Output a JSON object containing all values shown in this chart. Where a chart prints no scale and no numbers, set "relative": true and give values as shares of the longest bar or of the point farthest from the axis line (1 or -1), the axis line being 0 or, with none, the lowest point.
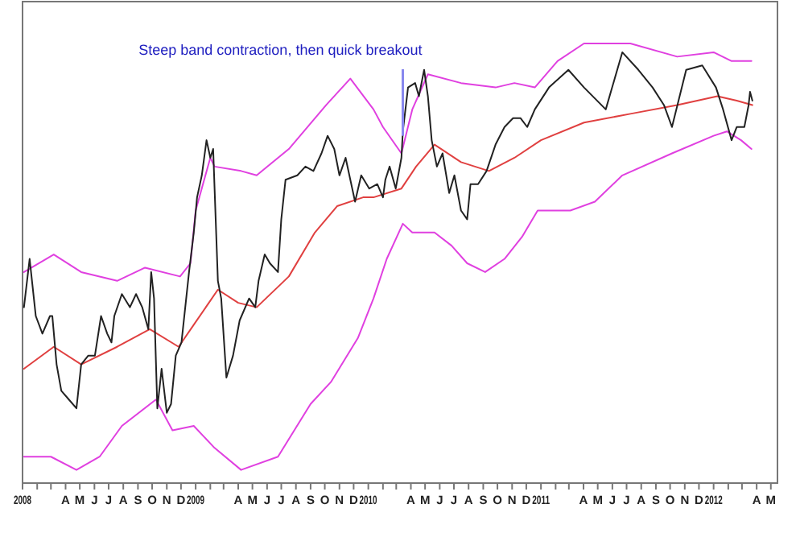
{
  "chart_data": {
    "type": "line",
    "relative": true,
    "grid": false,
    "marker": "none",
    "line_style": "solid",
    "xlim": [
      "2008-01-01",
      "2012-05-15"
    ],
    "xticks": [
      {
        "value": "2008-01-01",
        "label": "2008"
      },
      {
        "value": "2008-02-01",
        "label": null
      },
      {
        "value": "2008-03-01",
        "label": null
      },
      {
        "value": "2008-04-01",
        "label": "A"
      },
      {
        "value": "2008-05-01",
        "label": "M"
      },
      {
        "value": "2008-06-01",
        "label": "J"
      },
      {
        "value": "2008-07-01",
        "label": "J"
      },
      {
        "value": "2008-08-01",
        "label": "A"
      },
      {
        "value": "2008-09-01",
        "label": "S"
      },
      {
        "value": "2008-10-01",
        "label": "O"
      },
      {
        "value": "2008-11-01",
        "label": "N"
      },
      {
        "value": "2008-12-01",
        "label": "D"
      },
      {
        "value": "2009-01-01",
        "label": "2009"
      },
      {
        "value": "2009-02-01",
        "label": null
      },
      {
        "value": "2009-03-01",
        "label": null
      },
      {
        "value": "2009-04-01",
        "label": "A"
      },
      {
        "value": "2009-05-01",
        "label": "M"
      },
      {
        "value": "2009-06-01",
        "label": "J"
      },
      {
        "value": "2009-07-01",
        "label": "J"
      },
      {
        "value": "2009-08-01",
        "label": "A"
      },
      {
        "value": "2009-09-01",
        "label": "S"
      },
      {
        "value": "2009-10-01",
        "label": "O"
      },
      {
        "value": "2009-11-01",
        "label": "N"
      },
      {
        "value": "2009-12-01",
        "label": "D"
      },
      {
        "value": "2010-01-01",
        "label": "2010"
      },
      {
        "value": "2010-02-01",
        "label": null
      },
      {
        "value": "2010-03-01",
        "label": null
      },
      {
        "value": "2010-04-01",
        "label": "A"
      },
      {
        "value": "2010-05-01",
        "label": "M"
      },
      {
        "value": "2010-06-01",
        "label": "J"
      },
      {
        "value": "2010-07-01",
        "label": "J"
      },
      {
        "value": "2010-08-01",
        "label": "A"
      },
      {
        "value": "2010-09-01",
        "label": "S"
      },
      {
        "value": "2010-10-01",
        "label": "O"
      },
      {
        "value": "2010-11-01",
        "label": "N"
      },
      {
        "value": "2010-12-01",
        "label": "D"
      },
      {
        "value": "2011-01-01",
        "label": "2011"
      },
      {
        "value": "2011-02-01",
        "label": null
      },
      {
        "value": "2011-03-01",
        "label": null
      },
      {
        "value": "2011-04-01",
        "label": "A"
      },
      {
        "value": "2011-05-01",
        "label": "M"
      },
      {
        "value": "2011-06-01",
        "label": "J"
      },
      {
        "value": "2011-07-01",
        "label": "J"
      },
      {
        "value": "2011-08-01",
        "label": "A"
      },
      {
        "value": "2011-09-01",
        "label": "S"
      },
      {
        "value": "2011-10-01",
        "label": "O"
      },
      {
        "value": "2011-11-01",
        "label": "N"
      },
      {
        "value": "2011-12-01",
        "label": "D"
      },
      {
        "value": "2012-01-01",
        "label": "2012"
      },
      {
        "value": "2012-02-01",
        "label": null
      },
      {
        "value": "2012-03-01",
        "label": null
      },
      {
        "value": "2012-04-01",
        "label": "A"
      },
      {
        "value": "2012-05-01",
        "label": "M"
      }
    ],
    "annotations": [
      {
        "text": "Steep band contraction, then quick breakout",
        "x": "2010-03-15",
        "y": 0.79
      }
    ],
    "series": [
      {
        "color": "#e040e0",
        "x": [
          "2008-01-04",
          "2008-03-07",
          "2008-05-04",
          "2008-07-19",
          "2008-09-16",
          "2008-11-29",
          "2008-12-21",
          "2009-01-01",
          "2009-02-01",
          "2009-02-10",
          "2009-04-07",
          "2009-05-10",
          "2009-07-17",
          "2009-10-04",
          "2009-11-24",
          "2010-01-12",
          "2010-02-01",
          "2010-03-12",
          "2010-04-04",
          "2010-05-07",
          "2010-07-16",
          "2010-09-27",
          "2010-11-06",
          "2010-12-19",
          "2011-02-05",
          "2011-04-02",
          "2011-07-09",
          "2011-10-16",
          "2012-01-01",
          "2012-02-08",
          "2012-03-21"
        ],
        "values": [
          0.48,
          0.52,
          0.48,
          0.46,
          0.49,
          0.47,
          0.5,
          0.62,
          0.74,
          0.72,
          0.71,
          0.7,
          0.76,
          0.86,
          0.92,
          0.85,
          0.81,
          0.75,
          0.85,
          0.93,
          0.91,
          0.9,
          0.91,
          0.9,
          0.96,
          1.0,
          1.0,
          0.97,
          0.98,
          0.96,
          0.96
        ]
      },
      {
        "color": "#e04040",
        "x": [
          "2008-01-04",
          "2008-03-07",
          "2008-05-04",
          "2008-07-19",
          "2008-09-26",
          "2008-11-26",
          "2008-12-28",
          "2009-02-17",
          "2009-04-01",
          "2009-05-10",
          "2009-07-17",
          "2009-09-10",
          "2009-10-27",
          "2009-12-21",
          "2010-01-12",
          "2010-03-12",
          "2010-04-12",
          "2010-05-21",
          "2010-07-16",
          "2010-09-13",
          "2010-11-06",
          "2011-01-01",
          "2011-04-02",
          "2011-07-09",
          "2011-10-16",
          "2012-01-09",
          "2012-02-19",
          "2012-03-23"
        ],
        "values": [
          0.26,
          0.31,
          0.27,
          0.31,
          0.35,
          0.31,
          0.36,
          0.44,
          0.41,
          0.4,
          0.47,
          0.57,
          0.63,
          0.65,
          0.65,
          0.67,
          0.72,
          0.77,
          0.73,
          0.71,
          0.74,
          0.78,
          0.82,
          0.84,
          0.86,
          0.88,
          0.87,
          0.86
        ]
      },
      {
        "color": "#e040e0",
        "x": [
          "2008-01-04",
          "2008-03-01",
          "2008-04-24",
          "2008-06-12",
          "2008-07-29",
          "2008-10-09",
          "2008-11-13",
          "2008-12-28",
          "2009-02-10",
          "2009-04-07",
          "2009-06-24",
          "2009-09-01",
          "2009-10-14",
          "2009-12-10",
          "2010-01-12",
          "2010-02-09",
          "2010-03-15",
          "2010-04-04",
          "2010-05-21",
          "2010-06-26",
          "2010-07-29",
          "2010-09-05",
          "2010-10-16",
          "2010-11-22",
          "2010-12-25",
          "2011-03-04",
          "2011-04-25",
          "2011-06-22",
          "2011-10-05",
          "2012-01-01",
          "2012-01-29",
          "2012-02-28",
          "2012-03-21"
        ],
        "values": [
          0.06,
          0.06,
          0.03,
          0.06,
          0.13,
          0.19,
          0.12,
          0.13,
          0.08,
          0.03,
          0.06,
          0.18,
          0.23,
          0.33,
          0.42,
          0.51,
          0.59,
          0.57,
          0.57,
          0.54,
          0.5,
          0.48,
          0.51,
          0.56,
          0.62,
          0.62,
          0.64,
          0.7,
          0.75,
          0.79,
          0.8,
          0.78,
          0.76
        ]
      },
      {
        "color": "#222222",
        "x": [
          "2008-01-04",
          "2008-01-16",
          "2008-01-29",
          "2008-02-12",
          "2008-02-28",
          "2008-03-04",
          "2008-03-13",
          "2008-03-23",
          "2008-04-08",
          "2008-04-24",
          "2008-05-04",
          "2008-05-19",
          "2008-06-02",
          "2008-06-15",
          "2008-06-28",
          "2008-07-07",
          "2008-07-13",
          "2008-07-29",
          "2008-08-15",
          "2008-08-28",
          "2008-09-10",
          "2008-09-23",
          "2008-09-29",
          "2008-10-05",
          "2008-10-12",
          "2008-10-21",
          "2008-11-01",
          "2008-11-10",
          "2008-11-20",
          "2008-12-02",
          "2008-12-18",
          "2008-12-28",
          "2009-01-04",
          "2009-01-14",
          "2009-01-24",
          "2009-02-01",
          "2009-02-07",
          "2009-02-17",
          "2009-02-24",
          "2009-03-07",
          "2009-03-21",
          "2009-04-04",
          "2009-04-24",
          "2009-05-07",
          "2009-05-14",
          "2009-05-27",
          "2009-06-07",
          "2009-06-24",
          "2009-07-01",
          "2009-07-10",
          "2009-08-04",
          "2009-08-21",
          "2009-09-07",
          "2009-09-24",
          "2009-10-07",
          "2009-10-21",
          "2009-11-01",
          "2009-11-14",
          "2009-12-04",
          "2009-12-17",
          "2010-01-03",
          "2010-01-20",
          "2010-02-01",
          "2010-02-06",
          "2010-02-15",
          "2010-02-28",
          "2010-03-12",
          "2010-03-15",
          "2010-03-26",
          "2010-04-10",
          "2010-04-18",
          "2010-04-29",
          "2010-05-07",
          "2010-05-15",
          "2010-05-26",
          "2010-06-07",
          "2010-06-21",
          "2010-07-02",
          "2010-07-16",
          "2010-07-29",
          "2010-08-05",
          "2010-08-21",
          "2010-09-08",
          "2010-09-27",
          "2010-10-16",
          "2010-11-03",
          "2010-11-19",
          "2010-12-03",
          "2010-12-19",
          "2011-01-18",
          "2011-02-28",
          "2011-04-02",
          "2011-05-18",
          "2011-06-22",
          "2011-07-26",
          "2011-08-25",
          "2011-09-18",
          "2011-10-05",
          "2011-11-04",
          "2011-12-08",
          "2012-01-06",
          "2012-01-21",
          "2012-02-08",
          "2012-02-19",
          "2012-03-06",
          "2012-03-15",
          "2012-03-18",
          "2012-03-23"
        ],
        "values": [
          0.4,
          0.51,
          0.38,
          0.34,
          0.38,
          0.38,
          0.27,
          0.21,
          0.19,
          0.17,
          0.27,
          0.29,
          0.29,
          0.38,
          0.34,
          0.32,
          0.38,
          0.43,
          0.4,
          0.43,
          0.4,
          0.35,
          0.48,
          0.42,
          0.17,
          0.26,
          0.16,
          0.18,
          0.29,
          0.32,
          0.48,
          0.57,
          0.65,
          0.7,
          0.78,
          0.74,
          0.76,
          0.46,
          0.42,
          0.24,
          0.29,
          0.37,
          0.42,
          0.4,
          0.46,
          0.52,
          0.5,
          0.48,
          0.6,
          0.69,
          0.7,
          0.72,
          0.71,
          0.75,
          0.79,
          0.76,
          0.7,
          0.74,
          0.64,
          0.7,
          0.67,
          0.68,
          0.65,
          0.69,
          0.72,
          0.67,
          0.74,
          0.8,
          0.9,
          0.91,
          0.88,
          0.94,
          0.88,
          0.78,
          0.72,
          0.75,
          0.66,
          0.7,
          0.62,
          0.6,
          0.68,
          0.68,
          0.71,
          0.77,
          0.81,
          0.83,
          0.83,
          0.81,
          0.85,
          0.9,
          0.94,
          0.9,
          0.85,
          0.98,
          0.94,
          0.9,
          0.86,
          0.81,
          0.94,
          0.95,
          0.9,
          0.85,
          0.78,
          0.81,
          0.81,
          0.86,
          0.89,
          0.87
        ]
      }
    ]
  }
}
